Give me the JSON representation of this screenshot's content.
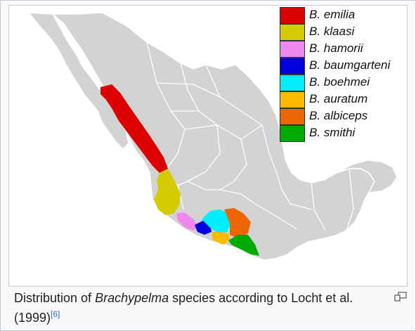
{
  "legend": {
    "items": [
      {
        "label": "B. emilia",
        "color": "#dd0000"
      },
      {
        "label": "B. klaasi",
        "color": "#d4cc00"
      },
      {
        "label": "B. hamorii",
        "color": "#ee88ee"
      },
      {
        "label": "B. baumgarteni",
        "color": "#0000dd"
      },
      {
        "label": "B. boehmei",
        "color": "#00eeff"
      },
      {
        "label": "B. auratum",
        "color": "#ffbb00"
      },
      {
        "label": "B. albiceps",
        "color": "#ee6600"
      },
      {
        "label": "B. smithi",
        "color": "#00aa00"
      }
    ]
  },
  "map": {
    "land_color": "#d3d3d3",
    "border_color": "#ffffff"
  },
  "caption": {
    "prefix": "Distribution of ",
    "genus": "Brachypelma",
    "suffix": " species according to Locht et al. (1999)",
    "reference": "[6]"
  },
  "enlarge_icon": "enlarge-icon"
}
